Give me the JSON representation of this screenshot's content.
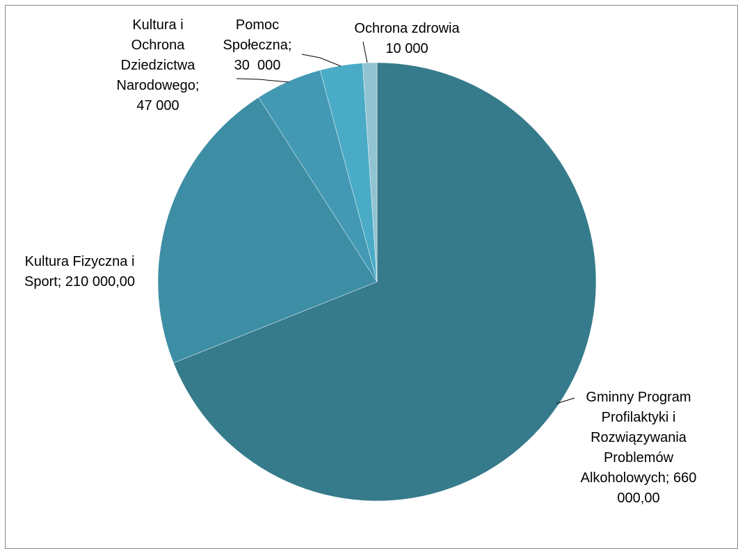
{
  "chart_data": {
    "type": "pie",
    "categories": [
      "Gminny Program Profilaktyki i Rozwiązywania Problemów Alkoholowych;",
      "Kultura Fizyczna i Sport;",
      "Kultura i Ochrona Dziedzictwa Narodowego;",
      "Pomoc Społeczna;",
      "Ochrona zdrowia"
    ],
    "values": [
      660000,
      210000,
      47000,
      30000,
      10000
    ],
    "value_labels": [
      "660 000,00",
      "210 000,00",
      "47 000",
      "30  000",
      "10 000"
    ],
    "colors": [
      "#367b8b",
      "#3d8ea4",
      "#4399b3",
      "#4aabc6",
      "#92c3d2"
    ]
  }
}
